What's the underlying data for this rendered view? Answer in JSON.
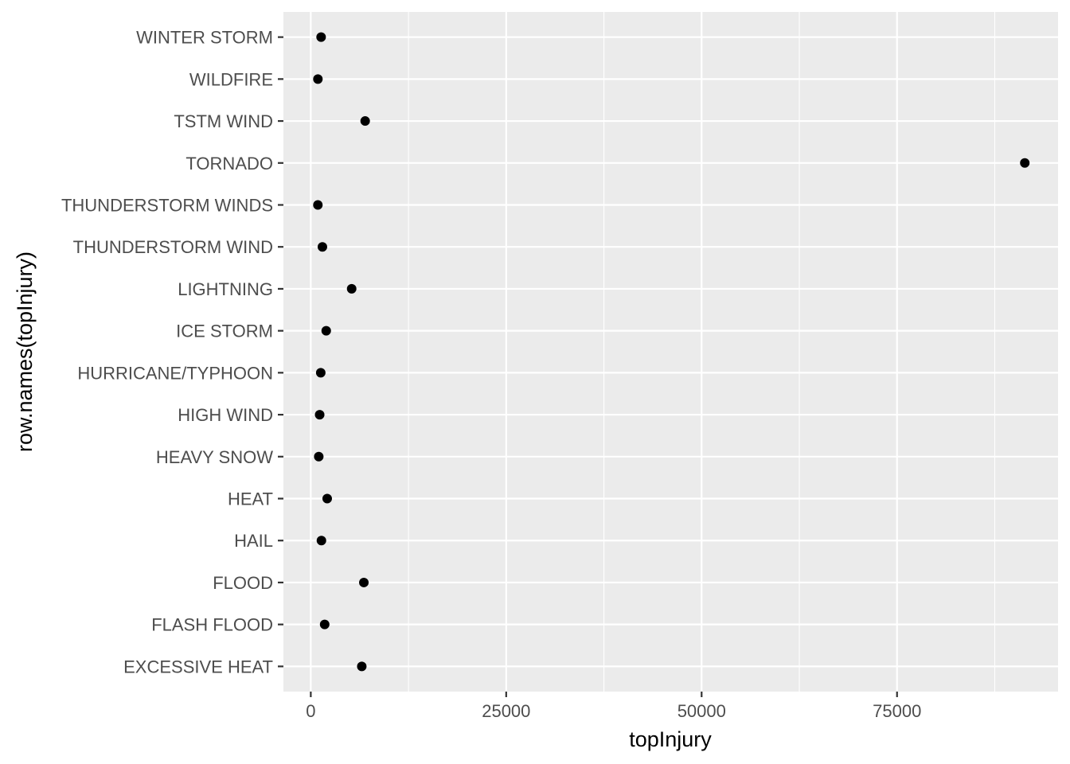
{
  "chart_data": {
    "type": "scatter",
    "xlabel": "topInjury",
    "ylabel": "row.names(topInjury)",
    "xlim": [
      -3500,
      95600
    ],
    "xticks": [
      0,
      25000,
      50000,
      75000
    ],
    "grid": true,
    "categories": [
      "EXCESSIVE HEAT",
      "FLASH FLOOD",
      "FLOOD",
      "HAIL",
      "HEAT",
      "HEAVY SNOW",
      "HIGH WIND",
      "HURRICANE/TYPHOON",
      "ICE STORM",
      "LIGHTNING",
      "THUNDERSTORM WIND",
      "THUNDERSTORM WINDS",
      "TORNADO",
      "TSTM WIND",
      "WILDFIRE",
      "WINTER STORM"
    ],
    "values": [
      6525,
      1777,
      6789,
      1361,
      2100,
      1021,
      1137,
      1275,
      1975,
      5230,
      1488,
      908,
      91346,
      6957,
      911,
      1321
    ],
    "colors": {
      "panel": "#ebebeb",
      "grid": "#ffffff",
      "point": "#000000",
      "tick": "#333333",
      "label": "#4d4d4d"
    }
  }
}
